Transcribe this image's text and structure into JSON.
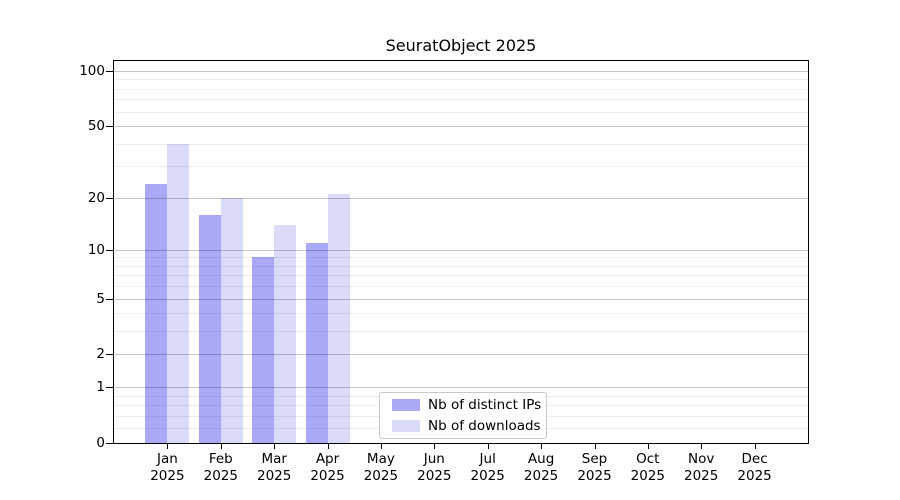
{
  "chart_data": {
    "type": "bar",
    "title": "SeuratObject 2025",
    "categories": [
      "Jan",
      "Feb",
      "Mar",
      "Apr",
      "May",
      "Jun",
      "Jul",
      "Aug",
      "Sep",
      "Oct",
      "Nov",
      "Dec"
    ],
    "year_label": "2025",
    "series": [
      {
        "name": "Nb of distinct IPs",
        "color": "#a9a9f7",
        "values": [
          24,
          16,
          9,
          11,
          0,
          0,
          0,
          0,
          0,
          0,
          0,
          0
        ]
      },
      {
        "name": "Nb of downloads",
        "color": "#dadaf9",
        "values": [
          40,
          20,
          14,
          21,
          0,
          0,
          0,
          0,
          0,
          0,
          0,
          0
        ]
      }
    ],
    "xlabel": "",
    "ylabel": "",
    "y_ticks": [
      0,
      1,
      2,
      5,
      10,
      20,
      50,
      100
    ],
    "y_minor_ticks": [
      0.2,
      0.4,
      0.6,
      0.8,
      3,
      4,
      6,
      7,
      8,
      9,
      30,
      40,
      60,
      70,
      80,
      90
    ],
    "y_scale": "log10(value+1)",
    "ylim": [
      0,
      113
    ],
    "grid": true,
    "grid_above_bars": true,
    "legend_position": "inside-lower-center",
    "background_color": "#ffffff",
    "axis_color": "#000000"
  }
}
